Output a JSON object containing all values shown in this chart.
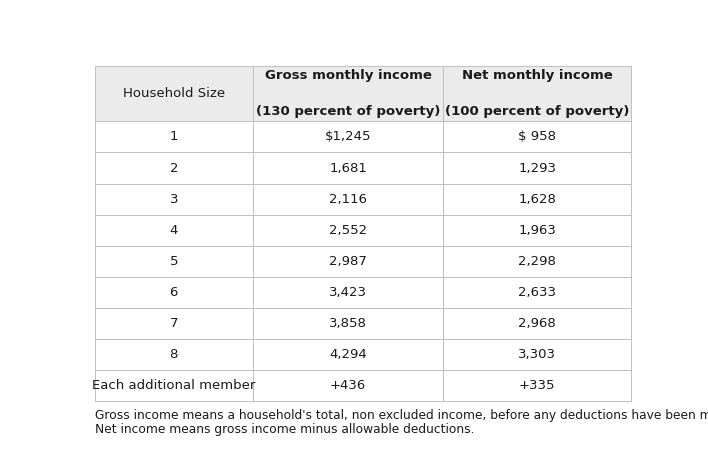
{
  "col_headers": [
    "Household Size",
    "Gross monthly income\n\n(130 percent of poverty)",
    "Net monthly income\n\n(100 percent of poverty)"
  ],
  "rows": [
    [
      "1",
      "$1,245",
      "$ 958"
    ],
    [
      "2",
      "1,681",
      "1,293"
    ],
    [
      "3",
      "2,116",
      "1,628"
    ],
    [
      "4",
      "2,552",
      "1,963"
    ],
    [
      "5",
      "2,987",
      "2,298"
    ],
    [
      "6",
      "3,423",
      "2,633"
    ],
    [
      "7",
      "3,858",
      "2,968"
    ],
    [
      "8",
      "4,294",
      "3,303"
    ],
    [
      "Each additional member",
      "+436",
      "+335"
    ]
  ],
  "footnote_line1": "Gross income means a household's total, non excluded income, before any deductions have been made.",
  "footnote_line2": "Net income means gross income minus allowable deductions.",
  "header_bg": "#ebebeb",
  "border_color": "#c0c0c0",
  "text_color": "#1a1a1a",
  "header_font_size": 9.5,
  "cell_font_size": 9.5,
  "footnote_font_size": 8.8,
  "fig_width": 7.08,
  "fig_height": 4.73
}
